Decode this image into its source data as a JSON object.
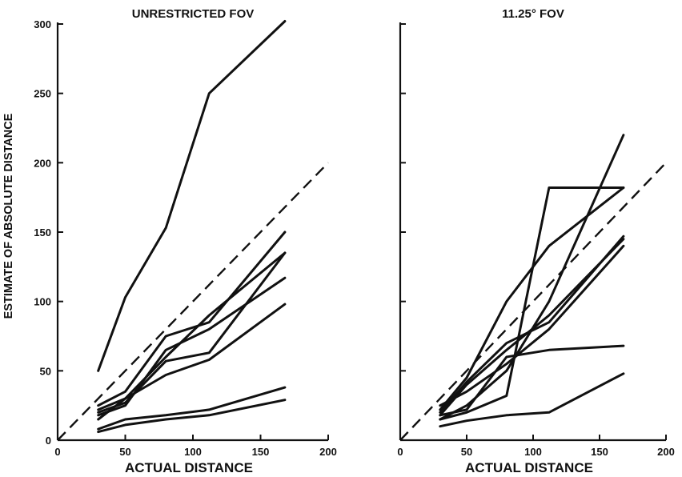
{
  "chart_data": [
    {
      "type": "line",
      "title": "UNRESTRICTED FOV",
      "xlabel": "ACTUAL DISTANCE",
      "ylabel": "ESTIMATE OF ABSOLUTE DISTANCE",
      "xlim": [
        0,
        200
      ],
      "ylim": [
        0,
        300
      ],
      "x_ticks": [
        0,
        50,
        100,
        150,
        200
      ],
      "y_ticks": [
        0,
        50,
        100,
        150,
        200,
        250,
        300
      ],
      "x_tick_labels": [
        "0",
        "50",
        "100",
        "150",
        "200"
      ],
      "y_tick_labels": [
        "0",
        "50",
        "100",
        "150",
        "200",
        "250",
        "300"
      ],
      "grid": false,
      "reference_line": {
        "style": "dashed",
        "x": [
          0,
          200
        ],
        "y": [
          0,
          200
        ]
      },
      "series": [
        {
          "x": [
            30,
            50,
            80,
            112,
            168
          ],
          "y": [
            50,
            103,
            153,
            250,
            302
          ]
        },
        {
          "x": [
            30,
            50,
            80,
            112,
            168
          ],
          "y": [
            25,
            35,
            75,
            85,
            150
          ]
        },
        {
          "x": [
            30,
            50,
            80,
            112,
            168
          ],
          "y": [
            22,
            30,
            60,
            90,
            135
          ]
        },
        {
          "x": [
            30,
            50,
            80,
            112,
            168
          ],
          "y": [
            20,
            27,
            57,
            63,
            135
          ]
        },
        {
          "x": [
            30,
            50,
            80,
            112,
            168
          ],
          "y": [
            18,
            25,
            65,
            80,
            117
          ]
        },
        {
          "x": [
            30,
            50,
            80,
            112,
            168
          ],
          "y": [
            15,
            30,
            47,
            58,
            98
          ]
        },
        {
          "x": [
            30,
            50,
            80,
            112,
            168
          ],
          "y": [
            8,
            15,
            18,
            22,
            38
          ]
        },
        {
          "x": [
            30,
            50,
            80,
            112,
            168
          ],
          "y": [
            6,
            11,
            15,
            18,
            29
          ]
        }
      ]
    },
    {
      "type": "line",
      "title": "11.25° FOV",
      "xlabel": "ACTUAL DISTANCE",
      "ylabel": "",
      "xlim": [
        0,
        200
      ],
      "ylim": [
        0,
        300
      ],
      "x_ticks": [
        0,
        50,
        100,
        150,
        200
      ],
      "y_ticks": [
        0,
        50,
        100,
        150,
        200,
        250,
        300
      ],
      "x_tick_labels": [
        "0",
        "50",
        "100",
        "150",
        "200"
      ],
      "y_tick_labels": [],
      "grid": false,
      "reference_line": {
        "style": "dashed",
        "x": [
          0,
          200
        ],
        "y": [
          0,
          200
        ]
      },
      "series": [
        {
          "x": [
            30,
            50,
            80,
            112,
            168
          ],
          "y": [
            15,
            20,
            32,
            182,
            182
          ]
        },
        {
          "x": [
            30,
            50,
            80,
            112,
            168
          ],
          "y": [
            22,
            45,
            100,
            140,
            182
          ]
        },
        {
          "x": [
            30,
            50,
            80,
            112,
            168
          ],
          "y": [
            15,
            25,
            50,
            100,
            220
          ]
        },
        {
          "x": [
            30,
            50,
            80,
            112,
            168
          ],
          "y": [
            18,
            40,
            65,
            90,
            145
          ]
        },
        {
          "x": [
            30,
            50,
            80,
            112,
            168
          ],
          "y": [
            20,
            42,
            70,
            85,
            147
          ]
        },
        {
          "x": [
            30,
            50,
            80,
            112,
            168
          ],
          "y": [
            25,
            35,
            55,
            80,
            140
          ]
        },
        {
          "x": [
            30,
            50,
            80,
            112,
            168
          ],
          "y": [
            18,
            22,
            60,
            65,
            68
          ]
        },
        {
          "x": [
            30,
            50,
            80,
            112,
            168
          ],
          "y": [
            10,
            14,
            18,
            20,
            48
          ]
        }
      ]
    }
  ]
}
